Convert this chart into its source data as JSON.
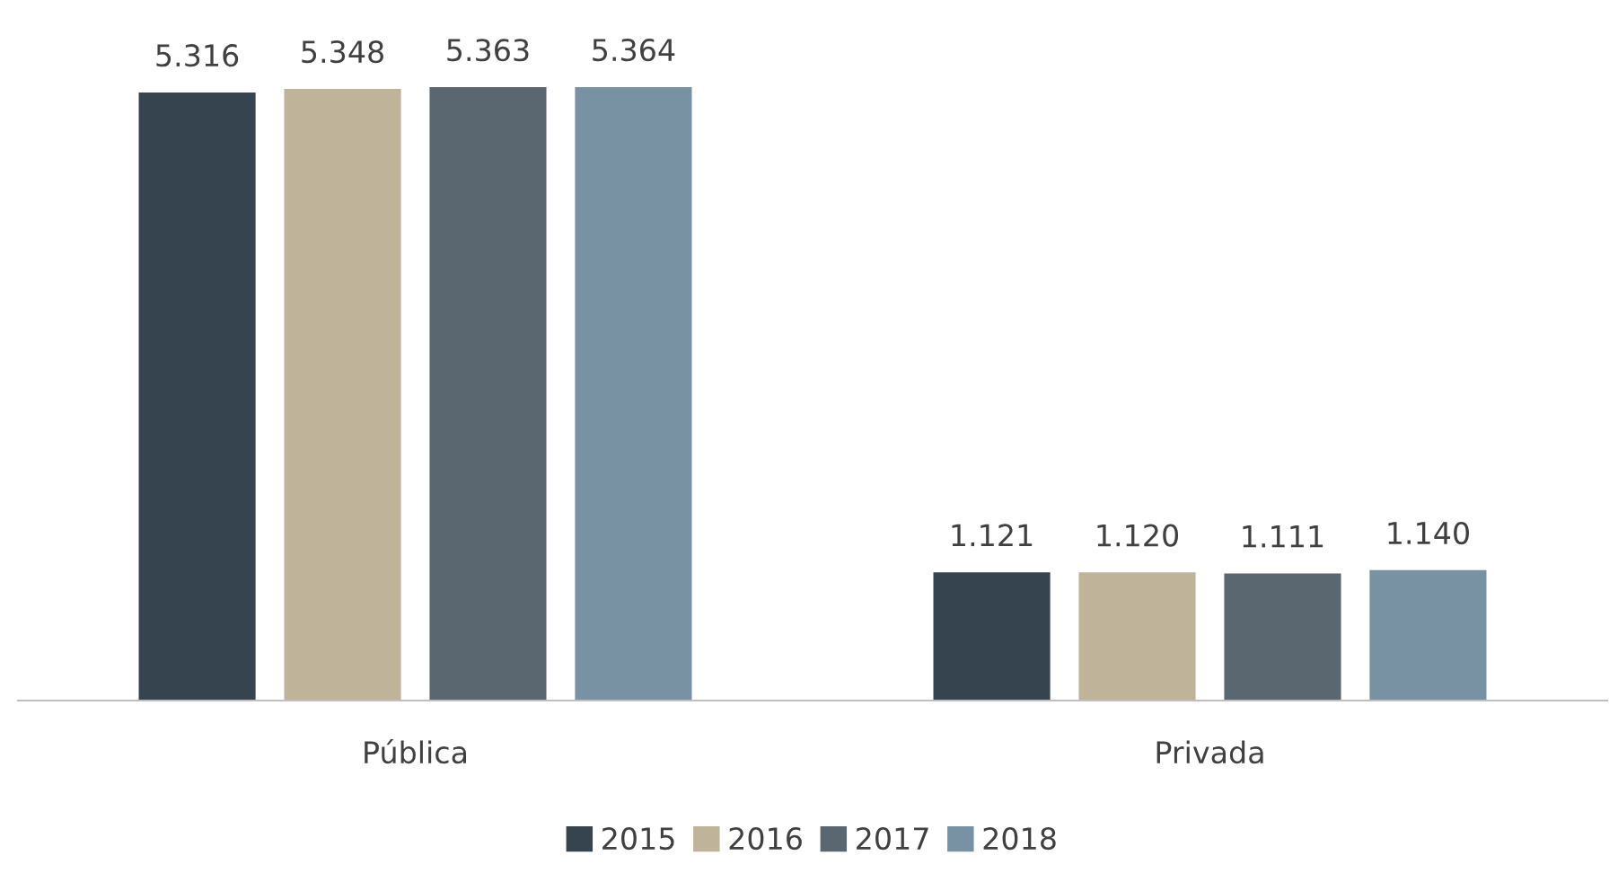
{
  "chart_data": {
    "type": "bar",
    "categories": [
      "Pública",
      "Privada"
    ],
    "series": [
      {
        "name": "2015",
        "color": "#36444f",
        "values": [
          5316,
          1121
        ],
        "value_labels": [
          "5.316",
          "1.121"
        ]
      },
      {
        "name": "2016",
        "color": "#bfb39a",
        "values": [
          5348,
          1120
        ],
        "value_labels": [
          "5.348",
          "1.120"
        ]
      },
      {
        "name": "2017",
        "color": "#5a6670",
        "values": [
          5363,
          1111
        ],
        "value_labels": [
          "5.363",
          "1.111"
        ]
      },
      {
        "name": "2018",
        "color": "#7891a3",
        "values": [
          5364,
          1140
        ],
        "value_labels": [
          "5.364",
          "1.140"
        ]
      }
    ],
    "tick_labels": "x",
    "grid": false,
    "legend": "bottom"
  }
}
